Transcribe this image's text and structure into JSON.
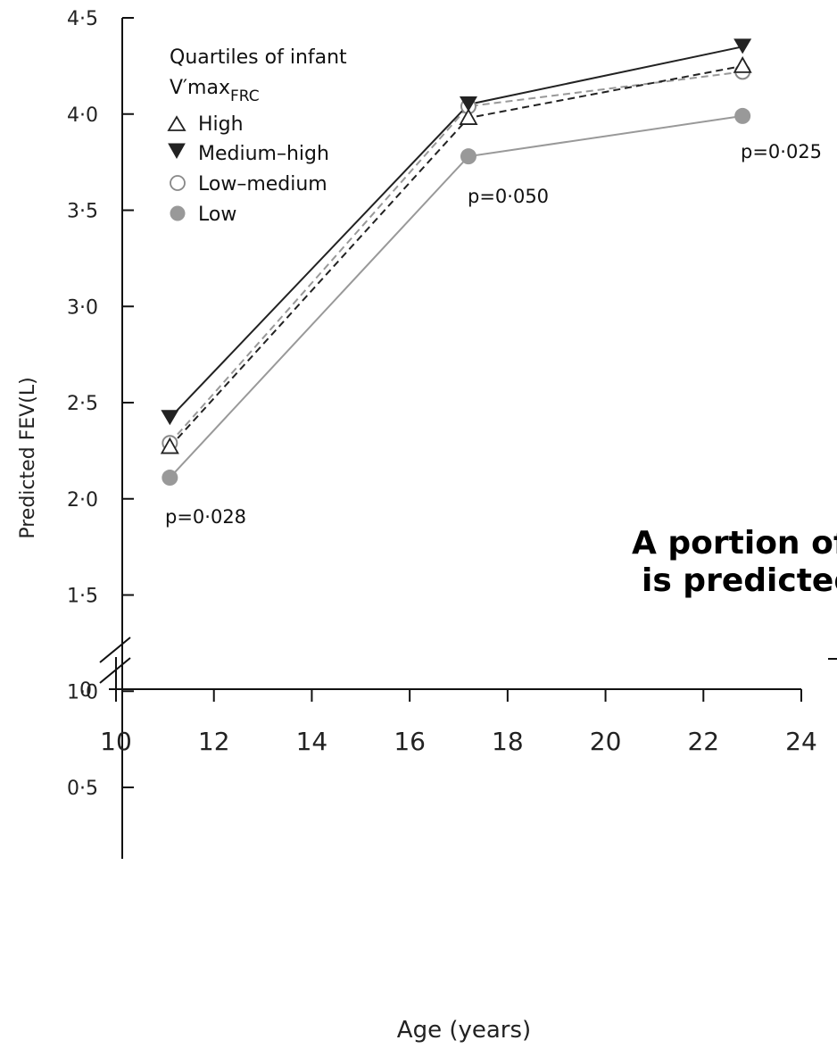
{
  "chart_data": {
    "type": "line",
    "ylabel": "Predicted FEV(L)",
    "xlabel": "Age (years)",
    "xlim": [
      10,
      24
    ],
    "ylim": [
      0,
      4.5
    ],
    "axis_break": true,
    "x_ticks": [
      "10",
      "12",
      "14",
      "16",
      "18",
      "20",
      "22",
      "24"
    ],
    "y_ticks": [
      "0·5",
      "1·0",
      "1·5",
      "2·0",
      "2·5",
      "3·0",
      "3·5",
      "4·0",
      "4·5"
    ],
    "y_zero_label": "0",
    "x": [
      11.1,
      17.2,
      22.8
    ],
    "legend_title_line1": "Quartiles of infant",
    "legend_title_line2_main": "V′max",
    "legend_title_line2_sub": "FRC",
    "legend_placement": "top-left",
    "series": [
      {
        "name": "High",
        "marker": "triangle-up-open",
        "line": "dashed",
        "color": "#222222",
        "values": [
          2.27,
          3.98,
          4.25
        ]
      },
      {
        "name": "Medium–high",
        "marker": "triangle-down-filled",
        "line": "solid",
        "color": "#222222",
        "values": [
          2.42,
          4.05,
          4.35
        ]
      },
      {
        "name": "Low–medium",
        "marker": "circle-open",
        "line": "dashed",
        "color": "#999999",
        "values": [
          2.29,
          4.04,
          4.22
        ]
      },
      {
        "name": "Low",
        "marker": "circle-filled",
        "line": "solid",
        "color": "#999999",
        "values": [
          2.11,
          3.78,
          3.99
        ]
      }
    ],
    "annotations": [
      "p=0·028",
      "p=0·050",
      "p=0·025"
    ]
  },
  "overlay": {
    "line1": "A portion of",
    "line2": "is predicted"
  }
}
